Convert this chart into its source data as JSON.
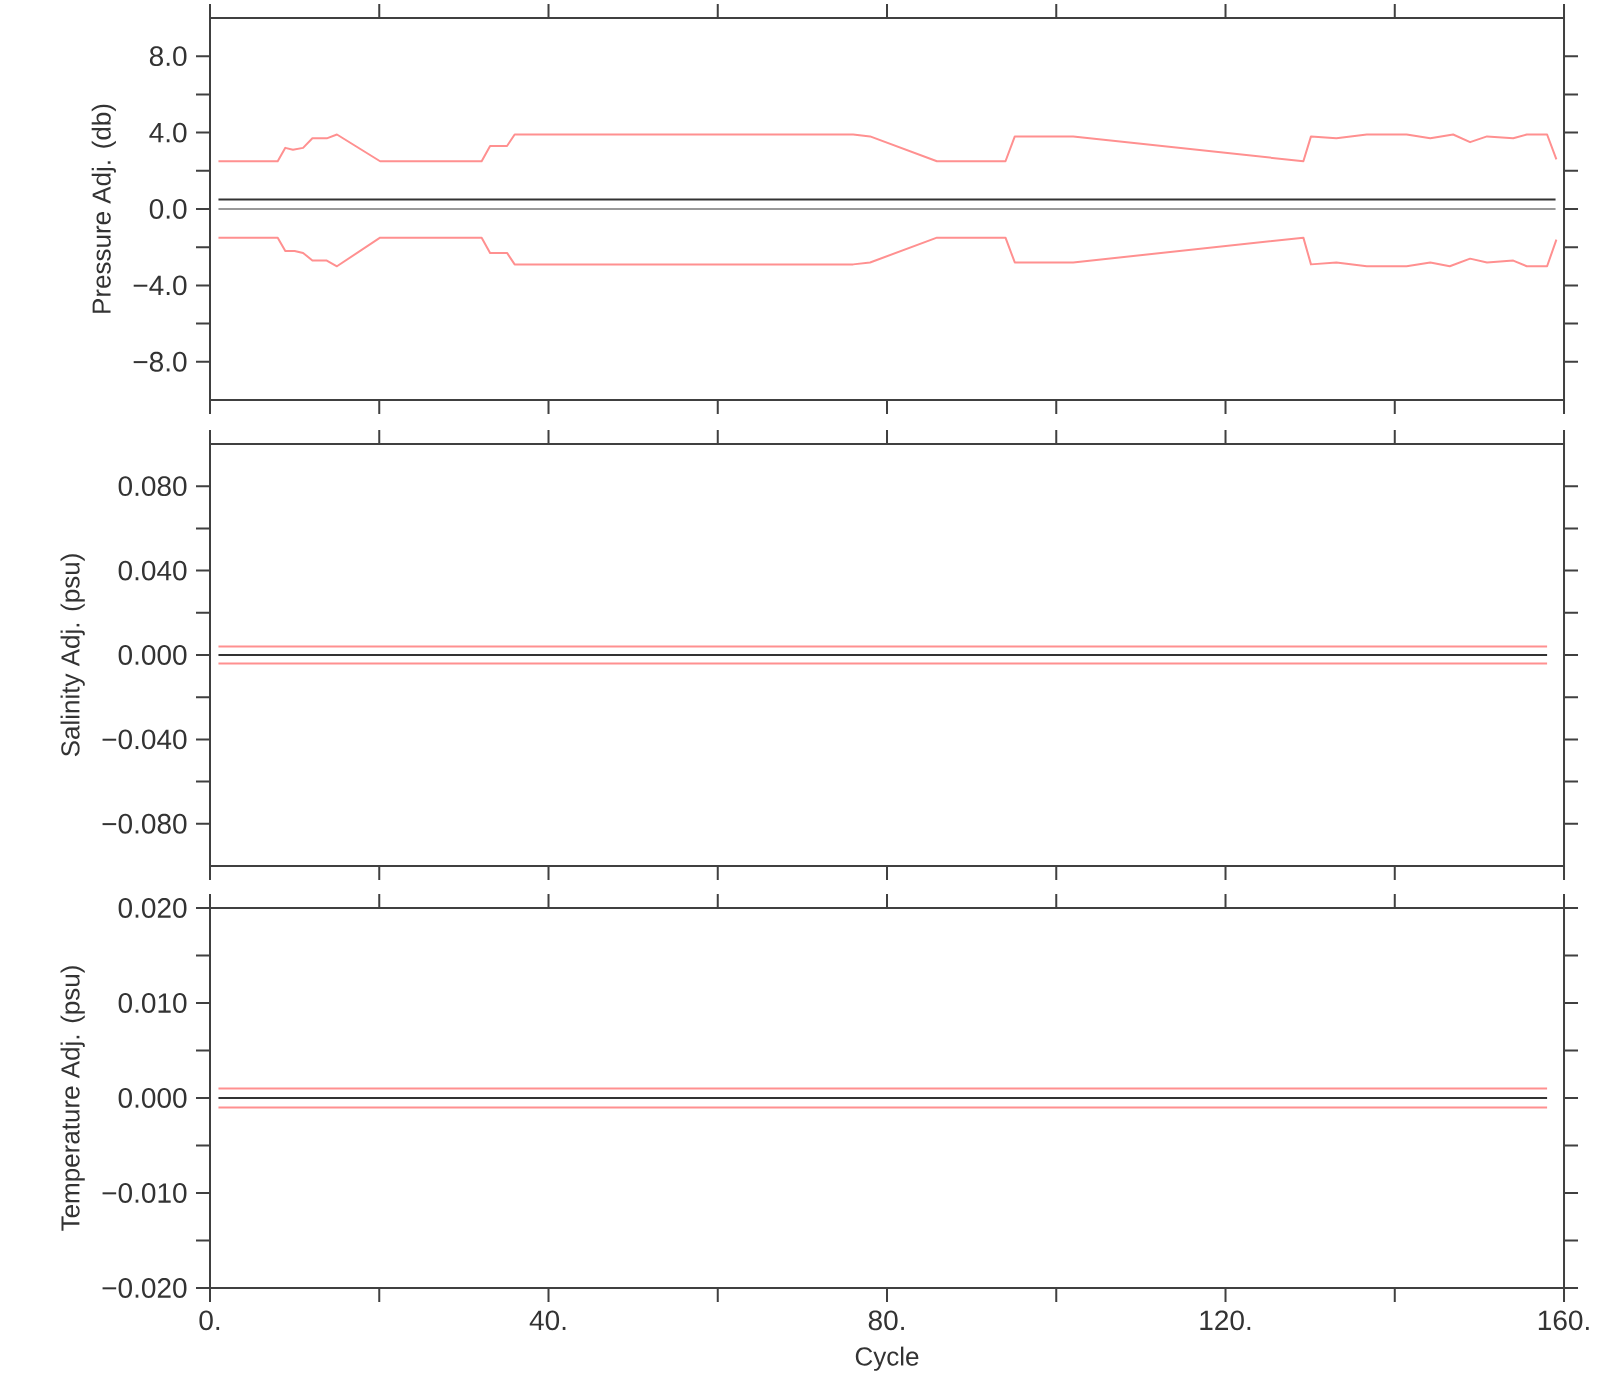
{
  "chart_data": [
    {
      "type": "line",
      "ylabel": "Pressure Adj. (db)",
      "xlim": [
        0,
        160
      ],
      "ylim": [
        -10,
        10
      ],
      "tick_labels": "y",
      "xticks": [
        0,
        20,
        40,
        60,
        80,
        100,
        120,
        140,
        160
      ],
      "yticks": [
        {
          "value": -8,
          "label": "−8.0"
        },
        {
          "value": -6,
          "label": null
        },
        {
          "value": -4,
          "label": "−4.0"
        },
        {
          "value": -2,
          "label": null
        },
        {
          "value": 0,
          "label": "0.0"
        },
        {
          "value": 2,
          "label": null
        },
        {
          "value": 4,
          "label": "4.0"
        },
        {
          "value": 6,
          "label": null
        },
        {
          "value": 8,
          "label": "8.0"
        }
      ],
      "series": [
        {
          "color": "#999999",
          "x": [
            1,
            159
          ],
          "values": [
            0,
            0
          ]
        },
        {
          "color": "#333333",
          "x": [
            1,
            159
          ],
          "values": [
            0.5,
            0.5
          ]
        },
        {
          "color": "#ff9090",
          "x": [
            1,
            8,
            8.9,
            9.8,
            11,
            12.1,
            13.8,
            15,
            20.1,
            32.1,
            33.1,
            35.1,
            36,
            69.7,
            76,
            78,
            85.9,
            94,
            95.1,
            102,
            129.2,
            130.1,
            133.1,
            136.7,
            141.4,
            144.2,
            146.9,
            148.9,
            150.9,
            154,
            155.6,
            158,
            159.1
          ],
          "values": [
            2.5,
            2.5,
            3.2,
            3.1,
            3.2,
            3.7,
            3.7,
            3.9,
            2.5,
            2.5,
            3.3,
            3.3,
            3.9,
            3.9,
            3.9,
            3.8,
            2.5,
            2.5,
            3.8,
            3.8,
            2.5,
            3.8,
            3.7,
            3.9,
            3.9,
            3.7,
            3.9,
            3.5,
            3.8,
            3.7,
            3.9,
            3.9,
            2.6
          ]
        },
        {
          "color": "#ff9090",
          "x": [
            1,
            8,
            8.9,
            10,
            11,
            12.1,
            13.8,
            15,
            20.1,
            32.1,
            33.1,
            35.1,
            36,
            69.7,
            76,
            78,
            85.9,
            94,
            95.1,
            102,
            129.2,
            130.1,
            133.1,
            136.7,
            141.4,
            144.2,
            146.5,
            148.9,
            150.9,
            154,
            155.6,
            158,
            159.1
          ],
          "values": [
            -1.5,
            -1.5,
            -2.2,
            -2.2,
            -2.3,
            -2.7,
            -2.7,
            -3.0,
            -1.5,
            -1.5,
            -2.3,
            -2.3,
            -2.9,
            -2.9,
            -2.9,
            -2.8,
            -1.5,
            -1.5,
            -2.8,
            -2.8,
            -1.5,
            -2.9,
            -2.8,
            -3.0,
            -3.0,
            -2.8,
            -3.0,
            -2.6,
            -2.8,
            -2.7,
            -3.0,
            -3.0,
            -1.6
          ]
        }
      ]
    },
    {
      "type": "line",
      "ylabel": "Salinity Adj. (psu)",
      "xlim": [
        0,
        160
      ],
      "ylim": [
        -0.1,
        0.1
      ],
      "tick_labels": "y",
      "xticks": [
        0,
        20,
        40,
        60,
        80,
        100,
        120,
        140,
        160
      ],
      "yticks": [
        {
          "value": -0.08,
          "label": "−0.080"
        },
        {
          "value": -0.06,
          "label": null
        },
        {
          "value": -0.04,
          "label": "−0.040"
        },
        {
          "value": -0.02,
          "label": null
        },
        {
          "value": 0,
          "label": "0.000"
        },
        {
          "value": 0.02,
          "label": null
        },
        {
          "value": 0.04,
          "label": "0.040"
        },
        {
          "value": 0.06,
          "label": null
        },
        {
          "value": 0.08,
          "label": "0.080"
        }
      ],
      "series": [
        {
          "color": "#333333",
          "x": [
            1,
            158
          ],
          "values": [
            0,
            0
          ]
        },
        {
          "color": "#ff9090",
          "x": [
            1,
            158
          ],
          "values": [
            0.004,
            0.004
          ]
        },
        {
          "color": "#ff9090",
          "x": [
            1,
            158
          ],
          "values": [
            -0.004,
            -0.004
          ]
        }
      ]
    },
    {
      "type": "line",
      "ylabel": "Temperature Adj. (psu)",
      "xlabel": "Cycle",
      "xlim": [
        0,
        160
      ],
      "ylim": [
        -0.02,
        0.02
      ],
      "xticks": [
        {
          "value": 0,
          "label": "0."
        },
        {
          "value": 20,
          "label": null
        },
        {
          "value": 40,
          "label": "40."
        },
        {
          "value": 60,
          "label": null
        },
        {
          "value": 80,
          "label": "80."
        },
        {
          "value": 100,
          "label": null
        },
        {
          "value": 120,
          "label": "120."
        },
        {
          "value": 140,
          "label": null
        },
        {
          "value": 160,
          "label": "160."
        }
      ],
      "yticks": [
        {
          "value": -0.02,
          "label": "−0.020"
        },
        {
          "value": -0.015,
          "label": null
        },
        {
          "value": -0.01,
          "label": "−0.010"
        },
        {
          "value": -0.005,
          "label": null
        },
        {
          "value": 0,
          "label": "0.000"
        },
        {
          "value": 0.005,
          "label": null
        },
        {
          "value": 0.01,
          "label": "0.010"
        },
        {
          "value": 0.015,
          "label": null
        },
        {
          "value": 0.02,
          "label": "0.020"
        }
      ],
      "series": [
        {
          "color": "#333333",
          "x": [
            1,
            158
          ],
          "values": [
            0,
            0
          ]
        },
        {
          "color": "#ff9090",
          "x": [
            1,
            158
          ],
          "values": [
            0.001,
            0.001
          ]
        },
        {
          "color": "#ff9090",
          "x": [
            1,
            158
          ],
          "values": [
            -0.001,
            -0.001
          ]
        }
      ]
    }
  ]
}
